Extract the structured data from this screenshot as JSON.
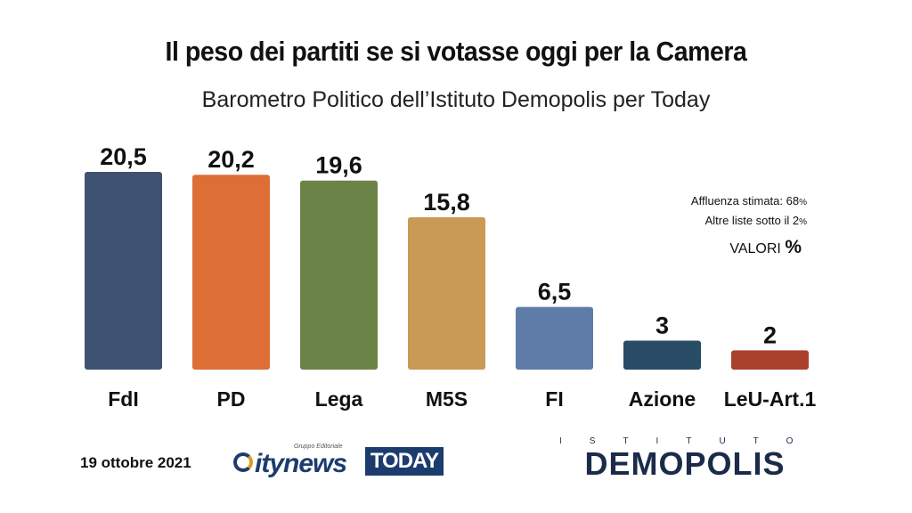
{
  "title": "Il peso dei partiti se si votasse oggi per la Camera",
  "subtitle": "Barometro Politico dell’Istituto Demopolis per Today",
  "notes": {
    "turnout_label": "Affluenza stimata: 68",
    "turnout_unit": "%",
    "others_label": "Altre liste sotto il 2",
    "others_unit": "%"
  },
  "values_label": "VALORI",
  "values_unit": "%",
  "footer": {
    "date": "19 ottobre 2021",
    "citynews_group": "Gruppo Editoriale",
    "citynews_name": "itynews",
    "today_logo": "TODAY",
    "demopolis_top": "ISTITUTO",
    "demopolis_name": "DEMOPOLIS"
  },
  "chart_data": {
    "type": "bar",
    "categories": [
      "FdI",
      "PD",
      "Lega",
      "M5S",
      "FI",
      "Azione",
      "LeU-Art.1"
    ],
    "values": [
      20.5,
      20.2,
      19.6,
      15.8,
      6.5,
      3,
      2
    ],
    "value_labels": [
      "20,5",
      "20,2",
      "19,6",
      "15,8",
      "6,5",
      "3",
      "2"
    ],
    "colors": [
      "#3f5272",
      "#dd6e36",
      "#6c8347",
      "#c89a56",
      "#5f7ca8",
      "#284b66",
      "#a9412d"
    ],
    "title": "Il peso dei partiti se si votasse oggi per la Camera",
    "xlabel": "",
    "ylabel": "",
    "ylim": [
      0,
      20.5
    ],
    "grid": false,
    "legend": "none"
  }
}
